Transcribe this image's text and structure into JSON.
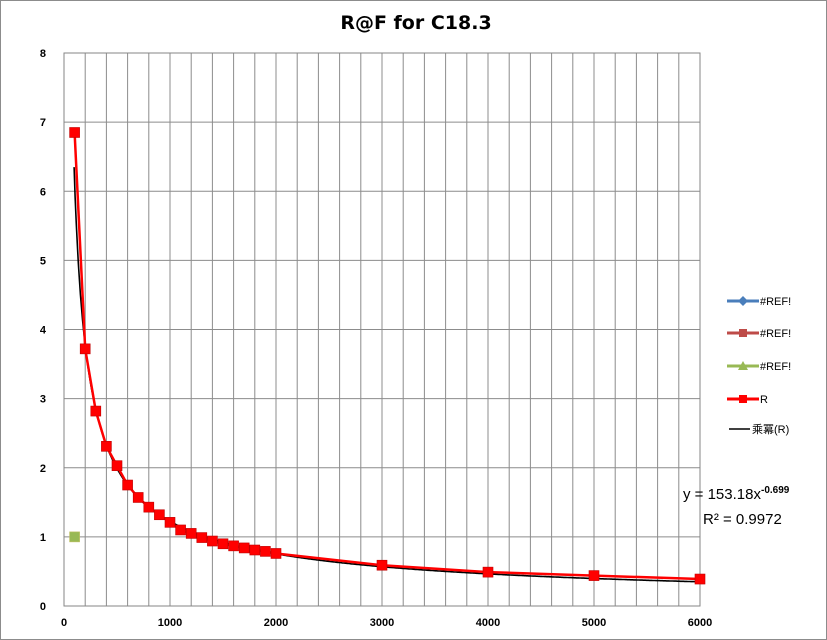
{
  "chart_data": {
    "type": "scatter",
    "title": "R@F  for C18.3",
    "xlabel": "",
    "ylabel": "",
    "xlim": [
      0,
      6000
    ],
    "ylim": [
      0,
      8
    ],
    "x_ticks": [
      "0",
      "1000",
      "2000",
      "3000",
      "4000",
      "5000",
      "6000"
    ],
    "y_ticks": [
      "0",
      "1",
      "2",
      "3",
      "4",
      "5",
      "6",
      "7",
      "8"
    ],
    "x_minor_step": 200,
    "grid": true,
    "legend_position": "right",
    "series": [
      {
        "name": "#REF!",
        "color": "#4a7ebb",
        "marker": "diamond",
        "x": [],
        "y": []
      },
      {
        "name": "#REF!",
        "color": "#be4b48",
        "marker": "square",
        "x": [],
        "y": []
      },
      {
        "name": "#REF!",
        "color": "#98b954",
        "marker": "triangle",
        "x": [
          100
        ],
        "y": [
          1.0
        ]
      },
      {
        "name": "R",
        "color": "#ff0000",
        "marker": "square",
        "x": [
          100,
          200,
          300,
          400,
          500,
          600,
          700,
          800,
          900,
          1000,
          1100,
          1200,
          1300,
          1400,
          1500,
          1600,
          1700,
          1800,
          1900,
          2000,
          3000,
          4000,
          5000,
          6000
        ],
        "y": [
          6.85,
          3.72,
          2.82,
          2.31,
          2.03,
          1.75,
          1.57,
          1.43,
          1.32,
          1.21,
          1.1,
          1.05,
          0.99,
          0.94,
          0.9,
          0.87,
          0.84,
          0.81,
          0.79,
          0.76,
          0.59,
          0.49,
          0.44,
          0.39
        ]
      },
      {
        "name": "乘冪(R)",
        "color": "#000000",
        "marker": "none",
        "type": "trendline",
        "fit": {
          "a": 153.18,
          "b": -0.699
        }
      }
    ],
    "annotations": {
      "eq_prefix": "y = 153.18x",
      "eq_exponent": "-0.699",
      "r2": "R² = 0.9972"
    }
  }
}
